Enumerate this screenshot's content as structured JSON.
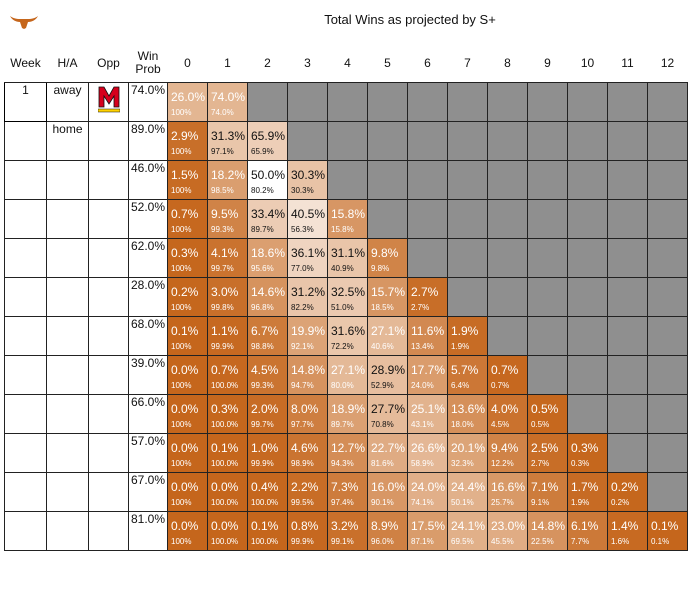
{
  "title": "Total Wins as projected by S+",
  "headers": [
    "Week",
    "H/A",
    "Opp",
    "Win\nProb",
    "0",
    "1",
    "2",
    "3",
    "4",
    "5",
    "6",
    "7",
    "8",
    "9",
    "10",
    "11",
    "12"
  ],
  "games": [
    {
      "week": "1",
      "ha": "away",
      "opp_logo": "maryland-logo",
      "win_prob": "74.0%"
    },
    {
      "week": "",
      "ha": "home",
      "opp_logo": "",
      "win_prob": "89.0%"
    },
    {
      "week": "",
      "ha": "",
      "opp_logo": "",
      "win_prob": "46.0%"
    },
    {
      "week": "",
      "ha": "",
      "opp_logo": "",
      "win_prob": "52.0%"
    },
    {
      "week": "",
      "ha": "",
      "opp_logo": "",
      "win_prob": "62.0%"
    },
    {
      "week": "",
      "ha": "",
      "opp_logo": "",
      "win_prob": "28.0%"
    },
    {
      "week": "",
      "ha": "",
      "opp_logo": "",
      "win_prob": "68.0%"
    },
    {
      "week": "",
      "ha": "",
      "opp_logo": "",
      "win_prob": "39.0%"
    },
    {
      "week": "",
      "ha": "",
      "opp_logo": "",
      "win_prob": "66.0%"
    },
    {
      "week": "",
      "ha": "",
      "opp_logo": "",
      "win_prob": "57.0%"
    },
    {
      "week": "",
      "ha": "",
      "opp_logo": "",
      "win_prob": "67.0%"
    },
    {
      "week": "",
      "ha": "",
      "opp_logo": "",
      "win_prob": "81.0%"
    }
  ],
  "cells": [
    [
      [
        "26.0%",
        "100%"
      ],
      [
        "74.0%",
        "74.0%"
      ]
    ],
    [
      [
        "2.9%",
        "100%"
      ],
      [
        "31.3%",
        "97.1%"
      ],
      [
        "65.9%",
        "65.9%"
      ]
    ],
    [
      [
        "1.5%",
        "100%"
      ],
      [
        "18.2%",
        "98.5%"
      ],
      [
        "50.0%",
        "80.2%"
      ],
      [
        "30.3%",
        "30.3%"
      ]
    ],
    [
      [
        "0.7%",
        "100%"
      ],
      [
        "9.5%",
        "99.3%"
      ],
      [
        "33.4%",
        "89.7%"
      ],
      [
        "40.5%",
        "56.3%"
      ],
      [
        "15.8%",
        "15.8%"
      ]
    ],
    [
      [
        "0.3%",
        "100%"
      ],
      [
        "4.1%",
        "99.7%"
      ],
      [
        "18.6%",
        "95.6%"
      ],
      [
        "36.1%",
        "77.0%"
      ],
      [
        "31.1%",
        "40.9%"
      ],
      [
        "9.8%",
        "9.8%"
      ]
    ],
    [
      [
        "0.2%",
        "100%"
      ],
      [
        "3.0%",
        "99.8%"
      ],
      [
        "14.6%",
        "96.8%"
      ],
      [
        "31.2%",
        "82.2%"
      ],
      [
        "32.5%",
        "51.0%"
      ],
      [
        "15.7%",
        "18.5%"
      ],
      [
        "2.7%",
        "2.7%"
      ]
    ],
    [
      [
        "0.1%",
        "100%"
      ],
      [
        "1.1%",
        "99.9%"
      ],
      [
        "6.7%",
        "98.8%"
      ],
      [
        "19.9%",
        "92.1%"
      ],
      [
        "31.6%",
        "72.2%"
      ],
      [
        "27.1%",
        "40.6%"
      ],
      [
        "11.6%",
        "13.4%"
      ],
      [
        "1.9%",
        "1.9%"
      ]
    ],
    [
      [
        "0.0%",
        "100%"
      ],
      [
        "0.7%",
        "100.0%"
      ],
      [
        "4.5%",
        "99.3%"
      ],
      [
        "14.8%",
        "94.7%"
      ],
      [
        "27.1%",
        "80.0%"
      ],
      [
        "28.9%",
        "52.9%"
      ],
      [
        "17.7%",
        "24.0%"
      ],
      [
        "5.7%",
        "6.4%"
      ],
      [
        "0.7%",
        "0.7%"
      ]
    ],
    [
      [
        "0.0%",
        "100%"
      ],
      [
        "0.3%",
        "100.0%"
      ],
      [
        "2.0%",
        "99.7%"
      ],
      [
        "8.0%",
        "97.7%"
      ],
      [
        "18.9%",
        "89.7%"
      ],
      [
        "27.7%",
        "70.8%"
      ],
      [
        "25.1%",
        "43.1%"
      ],
      [
        "13.6%",
        "18.0%"
      ],
      [
        "4.0%",
        "4.5%"
      ],
      [
        "0.5%",
        "0.5%"
      ]
    ],
    [
      [
        "0.0%",
        "100%"
      ],
      [
        "0.1%",
        "100.0%"
      ],
      [
        "1.0%",
        "99.9%"
      ],
      [
        "4.6%",
        "98.9%"
      ],
      [
        "12.7%",
        "94.3%"
      ],
      [
        "22.7%",
        "81.6%"
      ],
      [
        "26.6%",
        "58.9%"
      ],
      [
        "20.1%",
        "32.3%"
      ],
      [
        "9.4%",
        "12.2%"
      ],
      [
        "2.5%",
        "2.7%"
      ],
      [
        "0.3%",
        "0.3%"
      ]
    ],
    [
      [
        "0.0%",
        "100%"
      ],
      [
        "0.0%",
        "100.0%"
      ],
      [
        "0.4%",
        "100.0%"
      ],
      [
        "2.2%",
        "99.5%"
      ],
      [
        "7.3%",
        "97.4%"
      ],
      [
        "16.0%",
        "90.1%"
      ],
      [
        "24.0%",
        "74.1%"
      ],
      [
        "24.4%",
        "50.1%"
      ],
      [
        "16.6%",
        "25.7%"
      ],
      [
        "7.1%",
        "9.1%"
      ],
      [
        "1.7%",
        "1.9%"
      ],
      [
        "0.2%",
        "0.2%"
      ]
    ],
    [
      [
        "0.0%",
        "100%"
      ],
      [
        "0.0%",
        "100.0%"
      ],
      [
        "0.1%",
        "100.0%"
      ],
      [
        "0.8%",
        "99.9%"
      ],
      [
        "3.2%",
        "99.1%"
      ],
      [
        "8.9%",
        "96.0%"
      ],
      [
        "17.5%",
        "87.1%"
      ],
      [
        "24.1%",
        "69.5%"
      ],
      [
        "23.0%",
        "45.5%"
      ],
      [
        "14.8%",
        "22.5%"
      ],
      [
        "6.1%",
        "7.7%"
      ],
      [
        "1.4%",
        "1.6%"
      ],
      [
        "0.1%",
        "0.1%"
      ]
    ]
  ],
  "colors": {
    "orange": "#c5661c",
    "white": "#ffffff",
    "empty": "#8f8f8f",
    "maryland_red": "#d6001c"
  }
}
